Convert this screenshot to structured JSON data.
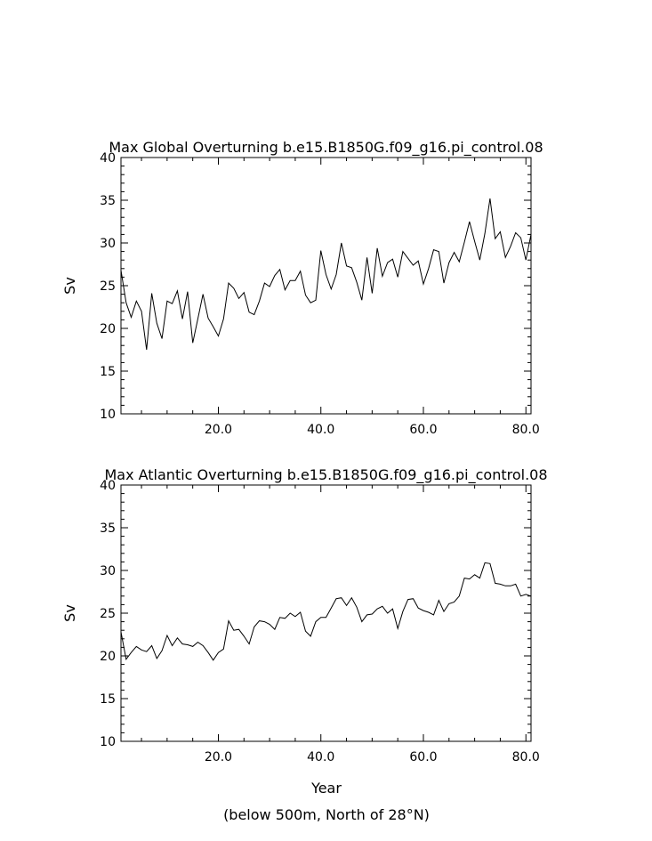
{
  "footer": {
    "xlabel": "Year",
    "note": "(below 500m, North of 28°N)"
  },
  "chart_data": [
    {
      "type": "line",
      "title": "Max Global Overturning b.e15.B1850G.f09_g16.pi_control.08",
      "xlabel": "",
      "ylabel": "Sv",
      "xlim": [
        1,
        81
      ],
      "ylim": [
        10,
        40
      ],
      "xticks": [
        20,
        40,
        60,
        80
      ],
      "xtick_labels": [
        "20.0",
        "40.0",
        "60.0",
        "80.0"
      ],
      "yticks": [
        10,
        15,
        20,
        25,
        30,
        35,
        40
      ],
      "ytick_labels": [
        "10",
        "15",
        "20",
        "25",
        "30",
        "35",
        "40"
      ],
      "grid": false,
      "series": [
        {
          "x": [
            1,
            2,
            3,
            4,
            5,
            6,
            7,
            8,
            9,
            10,
            11,
            12,
            13,
            14,
            15,
            16,
            17,
            18,
            19,
            20,
            21,
            22,
            23,
            24,
            25,
            26,
            27,
            28,
            29,
            30,
            31,
            32,
            33,
            34,
            35,
            36,
            37,
            38,
            39,
            40,
            41,
            42,
            43,
            44,
            45,
            46,
            47,
            48,
            49,
            50,
            51,
            52,
            53,
            54,
            55,
            56,
            57,
            58,
            59,
            60,
            61,
            62,
            63,
            64,
            65,
            66,
            67,
            68,
            69,
            70,
            71,
            72,
            73,
            74,
            75,
            76,
            77,
            78,
            79,
            80,
            81
          ],
          "values": [
            26.8,
            23.0,
            21.3,
            23.2,
            22.0,
            17.5,
            24.1,
            20.6,
            18.8,
            23.2,
            22.9,
            24.4,
            21.1,
            24.3,
            18.3,
            21.1,
            24.0,
            21.2,
            20.2,
            19.1,
            21.1,
            25.3,
            24.7,
            23.5,
            24.2,
            21.9,
            21.6,
            23.2,
            25.3,
            24.9,
            26.2,
            26.9,
            24.5,
            25.6,
            25.6,
            26.7,
            23.9,
            23.0,
            23.3,
            29.1,
            26.3,
            24.6,
            26.3,
            30.0,
            27.3,
            27.1,
            25.4,
            23.3,
            28.3,
            24.1,
            29.4,
            26.1,
            27.7,
            28.1,
            26.0,
            29.0,
            28.2,
            27.4,
            27.9,
            25.2,
            27.0,
            29.2,
            29.0,
            25.3,
            27.7,
            28.9,
            27.8,
            30.1,
            32.5,
            30.2,
            28.0,
            31.1,
            35.2,
            30.5,
            31.3,
            28.3,
            29.6,
            31.2,
            30.6,
            28.0,
            31.0
          ]
        }
      ]
    },
    {
      "type": "line",
      "title": "Max Atlantic Overturning b.e15.B1850G.f09_g16.pi_control.08",
      "xlabel": "Year",
      "ylabel": "Sv",
      "xlim": [
        1,
        81
      ],
      "ylim": [
        10,
        40
      ],
      "xticks": [
        20,
        40,
        60,
        80
      ],
      "xtick_labels": [
        "20.0",
        "40.0",
        "60.0",
        "80.0"
      ],
      "yticks": [
        10,
        15,
        20,
        25,
        30,
        35,
        40
      ],
      "ytick_labels": [
        "10",
        "15",
        "20",
        "25",
        "30",
        "35",
        "40"
      ],
      "grid": false,
      "series": [
        {
          "x": [
            1,
            2,
            3,
            4,
            5,
            6,
            7,
            8,
            9,
            10,
            11,
            12,
            13,
            14,
            15,
            16,
            17,
            18,
            19,
            20,
            21,
            22,
            23,
            24,
            25,
            26,
            27,
            28,
            29,
            30,
            31,
            32,
            33,
            34,
            35,
            36,
            37,
            38,
            39,
            40,
            41,
            42,
            43,
            44,
            45,
            46,
            47,
            48,
            49,
            50,
            51,
            52,
            53,
            54,
            55,
            56,
            57,
            58,
            59,
            60,
            61,
            62,
            63,
            64,
            65,
            66,
            67,
            68,
            69,
            70,
            71,
            72,
            73,
            74,
            75,
            76,
            77,
            78,
            79,
            80,
            81
          ],
          "values": [
            22.8,
            19.6,
            20.4,
            21.1,
            20.7,
            20.5,
            21.2,
            19.7,
            20.6,
            22.4,
            21.2,
            22.1,
            21.4,
            21.3,
            21.1,
            21.6,
            21.2,
            20.4,
            19.5,
            20.4,
            20.8,
            24.1,
            23.0,
            23.1,
            22.3,
            21.4,
            23.4,
            24.1,
            24.0,
            23.7,
            23.1,
            24.5,
            24.4,
            25.0,
            24.6,
            25.1,
            22.9,
            22.3,
            24.0,
            24.5,
            24.5,
            25.6,
            26.7,
            26.8,
            25.9,
            26.8,
            25.7,
            24.0,
            24.8,
            24.9,
            25.5,
            25.8,
            25.0,
            25.5,
            23.2,
            25.2,
            26.6,
            26.7,
            25.6,
            25.3,
            25.1,
            24.8,
            26.5,
            25.2,
            26.1,
            26.3,
            27.0,
            29.1,
            29.0,
            29.5,
            29.1,
            30.9,
            30.8,
            28.5,
            28.4,
            28.2,
            28.2,
            28.4,
            27.0,
            27.2,
            27.0
          ]
        }
      ]
    }
  ]
}
